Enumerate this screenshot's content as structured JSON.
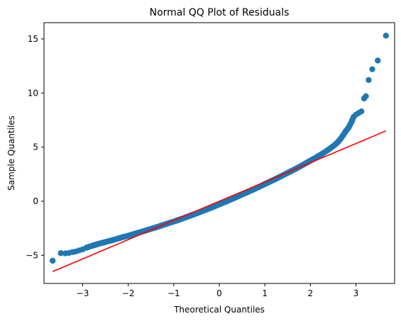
{
  "chart_data": {
    "type": "scatter",
    "title": "Normal QQ Plot of Residuals",
    "xlabel": "Theoretical Quantiles",
    "ylabel": "Sample Quantiles",
    "xlim": [
      -3.85,
      3.85
    ],
    "ylim": [
      -7.6,
      16.5
    ],
    "xticks": [
      -3,
      -2,
      -1,
      0,
      1,
      2,
      3
    ],
    "xtick_labels": [
      "−3",
      "−2",
      "−1",
      "0",
      "1",
      "2",
      "3"
    ],
    "yticks": [
      -5,
      0,
      5,
      10,
      15
    ],
    "ytick_labels": [
      "−5",
      "0",
      "5",
      "10",
      "15"
    ],
    "grid": false,
    "colors": {
      "points": "#1f77b4",
      "line": "#ff0000"
    },
    "series": [
      {
        "type": "scatter",
        "points": [
          [
            -3.66,
            -5.5
          ],
          [
            -3.48,
            -4.8
          ],
          [
            -3.38,
            -4.82
          ],
          [
            -3.3,
            -4.78
          ],
          [
            -3.22,
            -4.7
          ],
          [
            -3.15,
            -4.65
          ],
          [
            -3.08,
            -4.55
          ],
          [
            -3.0,
            -4.45
          ],
          [
            -2.92,
            -4.3
          ],
          [
            -2.85,
            -4.2
          ],
          [
            -2.76,
            -4.08
          ],
          [
            -2.68,
            -3.98
          ],
          [
            -2.6,
            -3.88
          ],
          [
            -2.52,
            -3.8
          ],
          [
            -2.44,
            -3.7
          ],
          [
            -2.36,
            -3.62
          ],
          [
            -2.28,
            -3.52
          ],
          [
            -2.2,
            -3.42
          ],
          [
            -2.12,
            -3.32
          ],
          [
            -2.04,
            -3.24
          ],
          [
            -1.96,
            -3.14
          ],
          [
            -1.88,
            -3.04
          ],
          [
            -1.8,
            -2.94
          ],
          [
            -1.72,
            -2.84
          ],
          [
            -1.64,
            -2.74
          ],
          [
            -1.56,
            -2.64
          ],
          [
            -1.48,
            -2.53
          ],
          [
            -1.4,
            -2.43
          ],
          [
            -1.32,
            -2.32
          ],
          [
            -1.24,
            -2.21
          ],
          [
            -1.16,
            -2.1
          ],
          [
            -1.08,
            -1.99
          ],
          [
            -1.0,
            -1.88
          ],
          [
            -0.92,
            -1.77
          ],
          [
            -0.84,
            -1.65
          ],
          [
            -0.76,
            -1.53
          ],
          [
            -0.68,
            -1.41
          ],
          [
            -0.6,
            -1.28
          ],
          [
            -0.52,
            -1.16
          ],
          [
            -0.44,
            -1.03
          ],
          [
            -0.36,
            -0.9
          ],
          [
            -0.28,
            -0.77
          ],
          [
            -0.2,
            -0.64
          ],
          [
            -0.12,
            -0.5
          ],
          [
            -0.04,
            -0.36
          ],
          [
            0.04,
            -0.22
          ],
          [
            0.12,
            -0.08
          ],
          [
            0.2,
            0.06
          ],
          [
            0.28,
            0.21
          ],
          [
            0.36,
            0.35
          ],
          [
            0.44,
            0.5
          ],
          [
            0.52,
            0.65
          ],
          [
            0.6,
            0.8
          ],
          [
            0.68,
            0.95
          ],
          [
            0.76,
            1.1
          ],
          [
            0.84,
            1.26
          ],
          [
            0.92,
            1.42
          ],
          [
            1.0,
            1.58
          ],
          [
            1.08,
            1.74
          ],
          [
            1.16,
            1.9
          ],
          [
            1.24,
            2.06
          ],
          [
            1.32,
            2.23
          ],
          [
            1.4,
            2.4
          ],
          [
            1.48,
            2.57
          ],
          [
            1.56,
            2.74
          ],
          [
            1.64,
            2.91
          ],
          [
            1.72,
            3.09
          ],
          [
            1.8,
            3.27
          ],
          [
            1.88,
            3.46
          ],
          [
            1.96,
            3.65
          ],
          [
            2.04,
            3.84
          ],
          [
            2.12,
            4.03
          ],
          [
            2.2,
            4.23
          ],
          [
            2.28,
            4.44
          ],
          [
            2.36,
            4.66
          ],
          [
            2.44,
            4.9
          ],
          [
            2.52,
            5.15
          ],
          [
            2.6,
            5.45
          ],
          [
            2.66,
            5.75
          ],
          [
            2.72,
            6.1
          ],
          [
            2.78,
            6.5
          ],
          [
            2.84,
            6.8
          ],
          [
            2.9,
            7.3
          ],
          [
            2.95,
            7.8
          ],
          [
            3.0,
            8.0
          ],
          [
            3.06,
            8.15
          ],
          [
            3.12,
            8.3
          ],
          [
            3.18,
            9.5
          ],
          [
            3.22,
            9.7
          ],
          [
            3.28,
            11.2
          ],
          [
            3.36,
            12.2
          ],
          [
            3.48,
            13.0
          ],
          [
            3.66,
            15.3
          ]
        ]
      },
      {
        "type": "line",
        "points": [
          [
            -3.66,
            -6.5
          ],
          [
            3.66,
            6.5
          ]
        ]
      }
    ]
  }
}
